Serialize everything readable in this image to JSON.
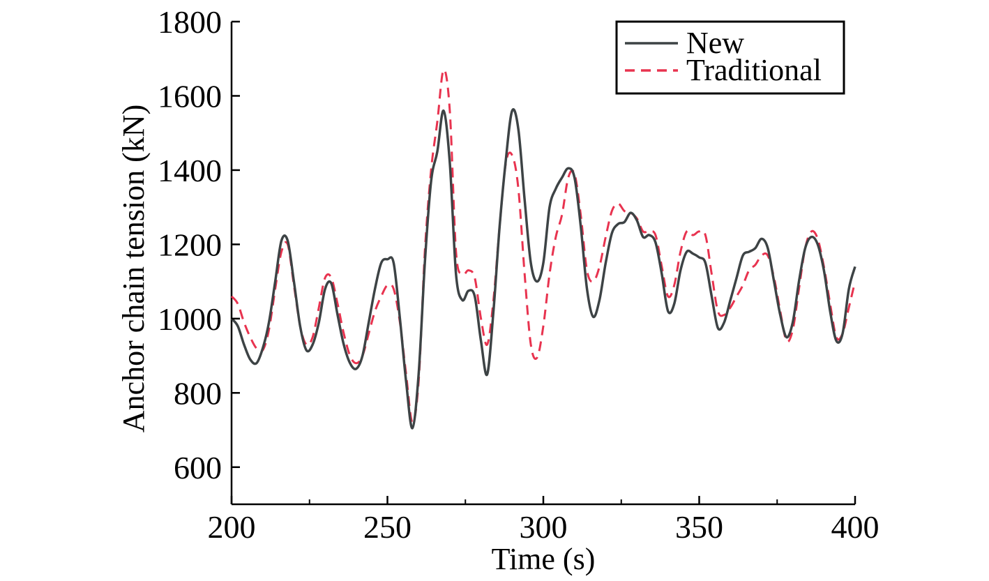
{
  "chart_data": {
    "type": "line",
    "title": "",
    "xlabel": "Time (s)",
    "ylabel": "Anchor chain tension (kN)",
    "xlim": [
      200,
      400
    ],
    "ylim": [
      500,
      1800
    ],
    "xticks": [
      200,
      250,
      300,
      350,
      400
    ],
    "yticks": [
      600,
      800,
      1000,
      1200,
      1400,
      1600,
      1800
    ],
    "grid": false,
    "legend_position": "top-right",
    "series": [
      {
        "name": "New",
        "color": "#3d4345",
        "style": "solid",
        "x": [
          200,
          202,
          204,
          206,
          208,
          210,
          212,
          214,
          216,
          218,
          220,
          222,
          224,
          226,
          228,
          230,
          232,
          234,
          236,
          238,
          240,
          242,
          244,
          246,
          248,
          250,
          252,
          254,
          256,
          258,
          260,
          262,
          264,
          266,
          268,
          270,
          272,
          274,
          276,
          278,
          280,
          282,
          284,
          286,
          288,
          290,
          292,
          294,
          296,
          298,
          300,
          302,
          304,
          306,
          308,
          310,
          312,
          314,
          316,
          318,
          320,
          322,
          324,
          326,
          328,
          330,
          332,
          334,
          336,
          338,
          340,
          342,
          344,
          346,
          348,
          350,
          352,
          354,
          356,
          358,
          360,
          362,
          364,
          366,
          368,
          370,
          372,
          374,
          376,
          378,
          380,
          382,
          384,
          386,
          388,
          390,
          392,
          394,
          396,
          398,
          400
        ],
        "y": [
          1000,
          980,
          930,
          890,
          880,
          920,
          990,
          1100,
          1210,
          1210,
          1100,
          980,
          915,
          930,
          990,
          1080,
          1095,
          1010,
          930,
          880,
          865,
          900,
          990,
          1080,
          1150,
          1160,
          1150,
          1000,
          830,
          705,
          850,
          1150,
          1370,
          1450,
          1560,
          1420,
          1120,
          1050,
          1075,
          1060,
          940,
          850,
          1020,
          1250,
          1430,
          1560,
          1510,
          1320,
          1150,
          1100,
          1150,
          1300,
          1350,
          1380,
          1405,
          1380,
          1250,
          1080,
          1005,
          1050,
          1150,
          1230,
          1255,
          1260,
          1285,
          1265,
          1220,
          1225,
          1205,
          1120,
          1020,
          1040,
          1130,
          1180,
          1175,
          1165,
          1150,
          1060,
          975,
          990,
          1050,
          1110,
          1170,
          1180,
          1190,
          1215,
          1190,
          1100,
          1010,
          950,
          990,
          1100,
          1190,
          1220,
          1200,
          1130,
          1020,
          940,
          960,
          1080,
          1140
        ]
      },
      {
        "name": "Traditional",
        "color": "#e8334f",
        "style": "dashed",
        "x": [
          200,
          202,
          204,
          206,
          208,
          210,
          212,
          214,
          216,
          218,
          220,
          222,
          224,
          226,
          228,
          230,
          232,
          234,
          236,
          238,
          240,
          242,
          244,
          246,
          248,
          250,
          252,
          254,
          256,
          258,
          260,
          262,
          264,
          266,
          268,
          270,
          272,
          274,
          276,
          278,
          280,
          282,
          284,
          286,
          288,
          290,
          292,
          294,
          296,
          298,
          300,
          302,
          304,
          306,
          308,
          310,
          312,
          314,
          316,
          318,
          320,
          322,
          324,
          326,
          328,
          330,
          332,
          334,
          336,
          338,
          340,
          342,
          344,
          346,
          348,
          350,
          352,
          354,
          356,
          358,
          360,
          362,
          364,
          366,
          368,
          370,
          372,
          374,
          376,
          378,
          380,
          382,
          384,
          386,
          388,
          390,
          392,
          394,
          396,
          398,
          400
        ],
        "y": [
          1060,
          1040,
          990,
          950,
          920,
          915,
          970,
          1080,
          1180,
          1200,
          1090,
          980,
          930,
          950,
          1030,
          1110,
          1110,
          1040,
          960,
          900,
          880,
          900,
          960,
          1020,
          1060,
          1090,
          1080,
          990,
          850,
          720,
          830,
          1180,
          1400,
          1530,
          1670,
          1560,
          1180,
          1120,
          1130,
          1110,
          1000,
          930,
          1050,
          1250,
          1420,
          1440,
          1350,
          1120,
          930,
          895,
          980,
          1120,
          1220,
          1280,
          1380,
          1390,
          1280,
          1130,
          1100,
          1140,
          1220,
          1290,
          1310,
          1290,
          1285,
          1270,
          1235,
          1235,
          1225,
          1140,
          1060,
          1090,
          1180,
          1235,
          1225,
          1235,
          1225,
          1120,
          1020,
          1010,
          1030,
          1060,
          1090,
          1130,
          1145,
          1170,
          1170,
          1110,
          1020,
          940,
          970,
          1080,
          1190,
          1235,
          1215,
          1140,
          1040,
          950,
          960,
          1030,
          1100
        ]
      }
    ]
  }
}
